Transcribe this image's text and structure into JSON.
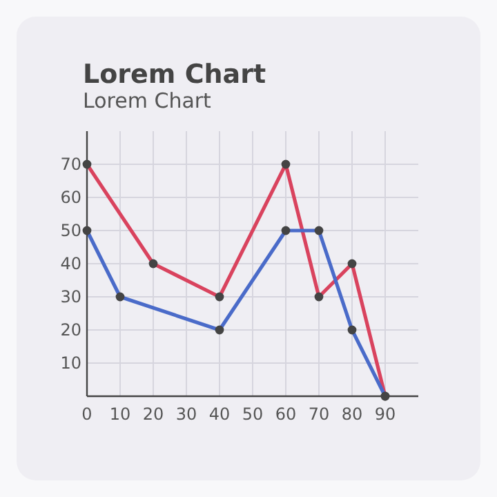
{
  "chart_data": {
    "type": "line",
    "title": "Lorem Chart",
    "subtitle": "Lorem Chart",
    "series": [
      {
        "color": "#d9435e",
        "x": [
          0,
          20,
          40,
          60,
          70,
          80,
          90
        ],
        "values": [
          70,
          40,
          30,
          70,
          30,
          40,
          0
        ]
      },
      {
        "color": "#4a6bc9",
        "x": [
          0,
          10,
          40,
          60,
          70,
          80,
          90
        ],
        "values": [
          50,
          30,
          20,
          50,
          50,
          20,
          0
        ]
      }
    ],
    "xlim": [
      0,
      100
    ],
    "ylim": [
      0,
      80
    ],
    "xticks": [
      0,
      10,
      20,
      30,
      40,
      50,
      60,
      70,
      80,
      90
    ],
    "yticks": [
      10,
      20,
      30,
      40,
      50,
      60,
      70
    ],
    "grid": true,
    "marker": "circle",
    "line_style": "solid"
  }
}
